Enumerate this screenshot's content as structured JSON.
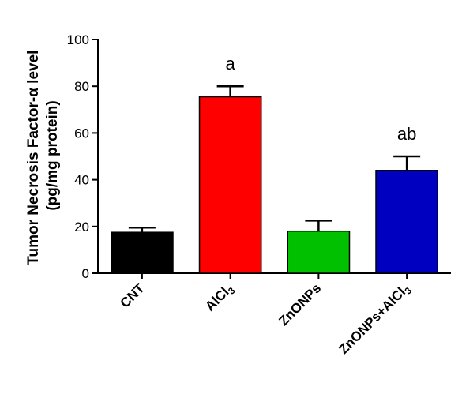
{
  "chart_data": {
    "type": "bar",
    "categories": [
      "CNT",
      "AlCl3",
      "ZnONPs",
      "ZnONPs+AlCl3"
    ],
    "category_parts": [
      {
        "main": "CNT",
        "sub": ""
      },
      {
        "main": "AlCl",
        "sub": "3"
      },
      {
        "main": "ZnONPs",
        "sub": ""
      },
      {
        "main": "ZnONPs+AlCl",
        "sub": "3"
      }
    ],
    "values": [
      17.5,
      75.5,
      18.0,
      44.0
    ],
    "errors": [
      2.0,
      4.5,
      4.5,
      6.0
    ],
    "colors": [
      "#000000",
      "#ff0000",
      "#00c000",
      "#0000c0"
    ],
    "annotations": [
      "",
      "a",
      "",
      "ab"
    ],
    "ylabel_line1": "Tumor Necrosis Factor-α level",
    "ylabel_line2": "(pg/mg protein)",
    "ylim": [
      0,
      100
    ],
    "yticks": [
      "0",
      "20",
      "40",
      "60",
      "80",
      "100"
    ],
    "grid": false
  }
}
